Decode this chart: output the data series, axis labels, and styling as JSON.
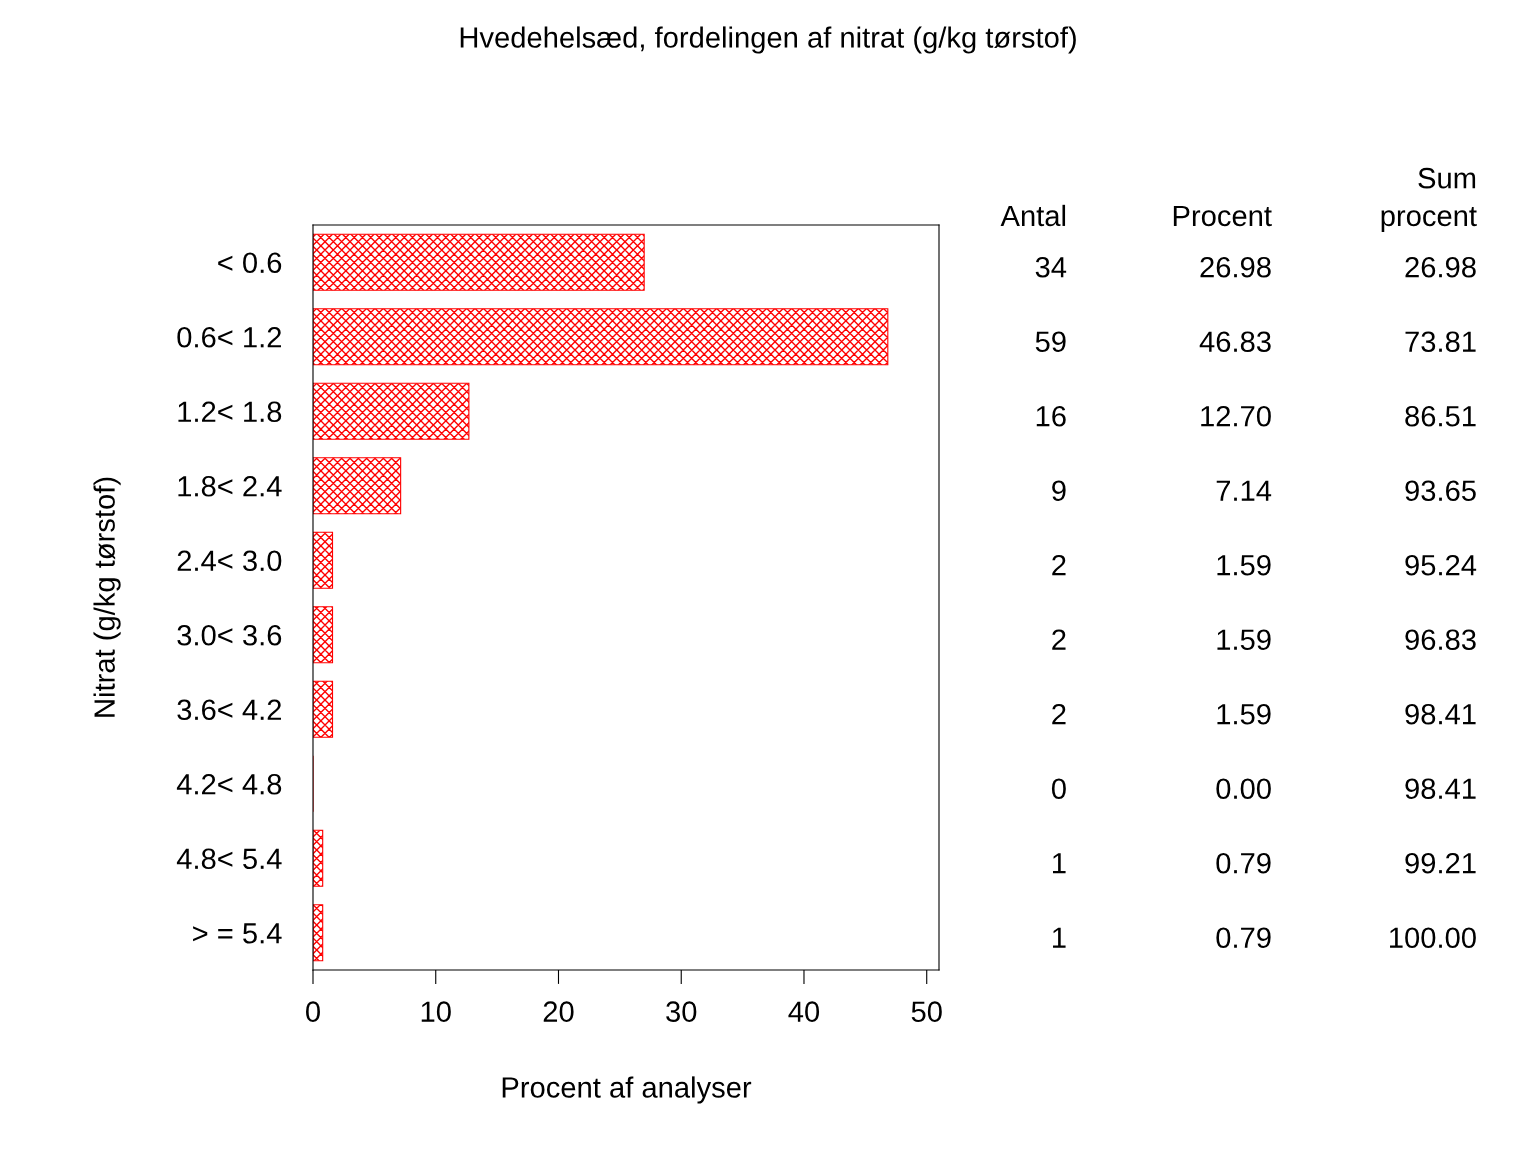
{
  "chart_data": {
    "type": "bar",
    "orientation": "horizontal",
    "title": "Hvedehelsæd, fordelingen af nitrat (g/kg tørstof)",
    "xlabel": "Procent af analyser",
    "ylabel": "Nitrat (g/kg tørstof)",
    "categories": [
      "< 0.6",
      "0.6< 1.2",
      "1.2< 1.8",
      "1.8< 2.4",
      "2.4< 3.0",
      "3.0< 3.6",
      "3.6< 4.2",
      "4.2< 4.8",
      "4.8< 5.4",
      "> = 5.4"
    ],
    "values": [
      26.98,
      46.83,
      12.7,
      7.14,
      1.59,
      1.59,
      1.59,
      0.0,
      0.79,
      0.79
    ],
    "value_labels": [
      "26.98",
      "46.83",
      "12.70",
      "7.14",
      "1.59",
      "1.59",
      "1.59",
      "0.00",
      "0.79",
      "0.79"
    ],
    "color": "#ff0000",
    "xlim": [
      0,
      51
    ],
    "xticks": [
      0,
      10,
      20,
      30,
      40,
      50
    ],
    "grid": false,
    "annotations": [
      "Antal",
      "Procent",
      "Sum\nprocent",
      "34",
      "26.98",
      "59",
      "73.81",
      "16",
      "86.51",
      "9",
      "93.65",
      "2",
      "95.24",
      "2",
      "96.83",
      "2",
      "98.41",
      "0",
      "98.41",
      "1",
      "99.21",
      "1",
      "100.00"
    ]
  }
}
